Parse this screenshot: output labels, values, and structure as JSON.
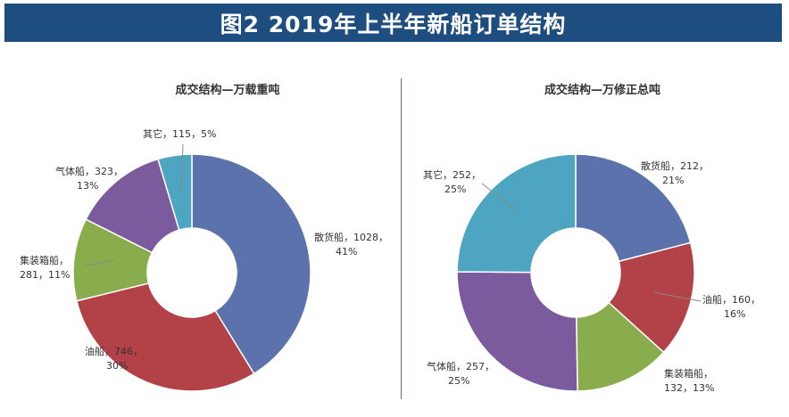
{
  "header": {
    "title": "图2 2019年上半年新船订单结构"
  },
  "chart_data": [
    {
      "type": "pie",
      "title": "成交结构—万载重吨",
      "donut": true,
      "slices": [
        {
          "name": "散货船",
          "value": 1028,
          "percent": "41%",
          "color": "#5b72ad",
          "label_line1": "散货船，1028，",
          "label_line2": "41%"
        },
        {
          "name": "油船",
          "value": 746,
          "percent": "30%",
          "color": "#b24248",
          "label_line1": "油船，746，",
          "label_line2": "30%"
        },
        {
          "name": "集装箱船",
          "value": 281,
          "percent": "11%",
          "color": "#89ad4d",
          "label_line1": "集装箱船，",
          "label_line2": "281，11%"
        },
        {
          "name": "气体船",
          "value": 323,
          "percent": "13%",
          "color": "#7b5b9e",
          "label_line1": "气体船，323，",
          "label_line2": "13%"
        },
        {
          "name": "其它",
          "value": 115,
          "percent": "5%",
          "color": "#4ea5c2",
          "label_line1": "其它，115，5%",
          "label_line2": ""
        }
      ]
    },
    {
      "type": "pie",
      "title": "成交结构—万修正总吨",
      "donut": true,
      "slices": [
        {
          "name": "散货船",
          "value": 212,
          "percent": "21%",
          "color": "#5b72ad",
          "label_line1": "散货船，212，",
          "label_line2": "21%"
        },
        {
          "name": "油船",
          "value": 160,
          "percent": "16%",
          "color": "#b24248",
          "label_line1": "油船，160，",
          "label_line2": "16%"
        },
        {
          "name": "集装箱船",
          "value": 132,
          "percent": "13%",
          "color": "#89ad4d",
          "label_line1": "集装箱船，",
          "label_line2": "132，13%"
        },
        {
          "name": "气体船",
          "value": 257,
          "percent": "25%",
          "color": "#7b5b9e",
          "label_line1": "气体船，257，",
          "label_line2": "25%"
        },
        {
          "name": "其它",
          "value": 252,
          "percent": "25%",
          "color": "#4ea5c2",
          "label_line1": "其它，252，",
          "label_line2": "25%"
        }
      ]
    }
  ]
}
